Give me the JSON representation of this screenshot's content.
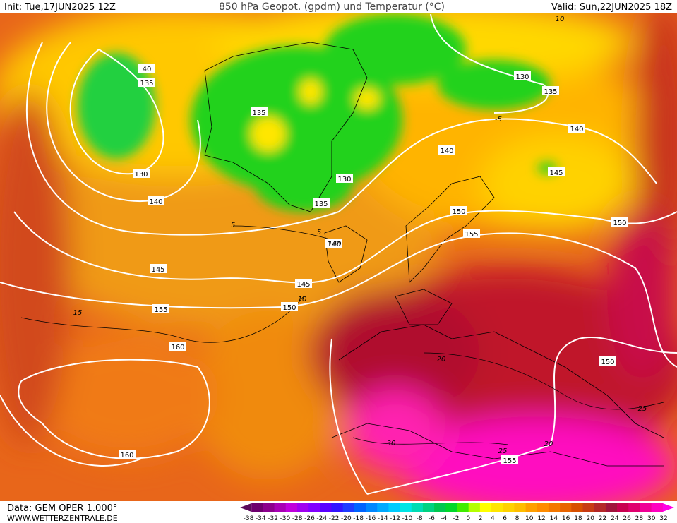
{
  "header": {
    "init": "Init: Tue,17JUN2025 12Z",
    "title": "850 hPa Geopot. (gpdm) und Temperatur (°C)",
    "valid": "Valid: Sun,22JUN2025 18Z"
  },
  "footer": {
    "data": "Data: GEM OPER 1.000°",
    "website": "WWW.WETTERZENTRALE.DE"
  },
  "colorbar": {
    "labels": [
      "-38",
      "-34",
      "-32",
      "-30",
      "-28",
      "-26",
      "-24",
      "-22",
      "-20",
      "-18",
      "-16",
      "-14",
      "-12",
      "-10",
      "-8",
      "-6",
      "-4",
      "-2",
      "0",
      "2",
      "4",
      "6",
      "8",
      "10",
      "12",
      "14",
      "16",
      "18",
      "20",
      "22",
      "24",
      "26",
      "28",
      "30",
      "32"
    ]
  },
  "contour_labels": [
    "40",
    "135",
    "130",
    "140",
    "145",
    "155",
    "160",
    "160",
    "135",
    "130",
    "135",
    "140",
    "145",
    "150",
    "140",
    "150",
    "155",
    "130",
    "135",
    "140",
    "140",
    "145",
    "150",
    "150",
    "155",
    "5",
    "5",
    "10",
    "15",
    "-5",
    "10",
    "20",
    "25",
    "25",
    "30",
    "20"
  ]
}
